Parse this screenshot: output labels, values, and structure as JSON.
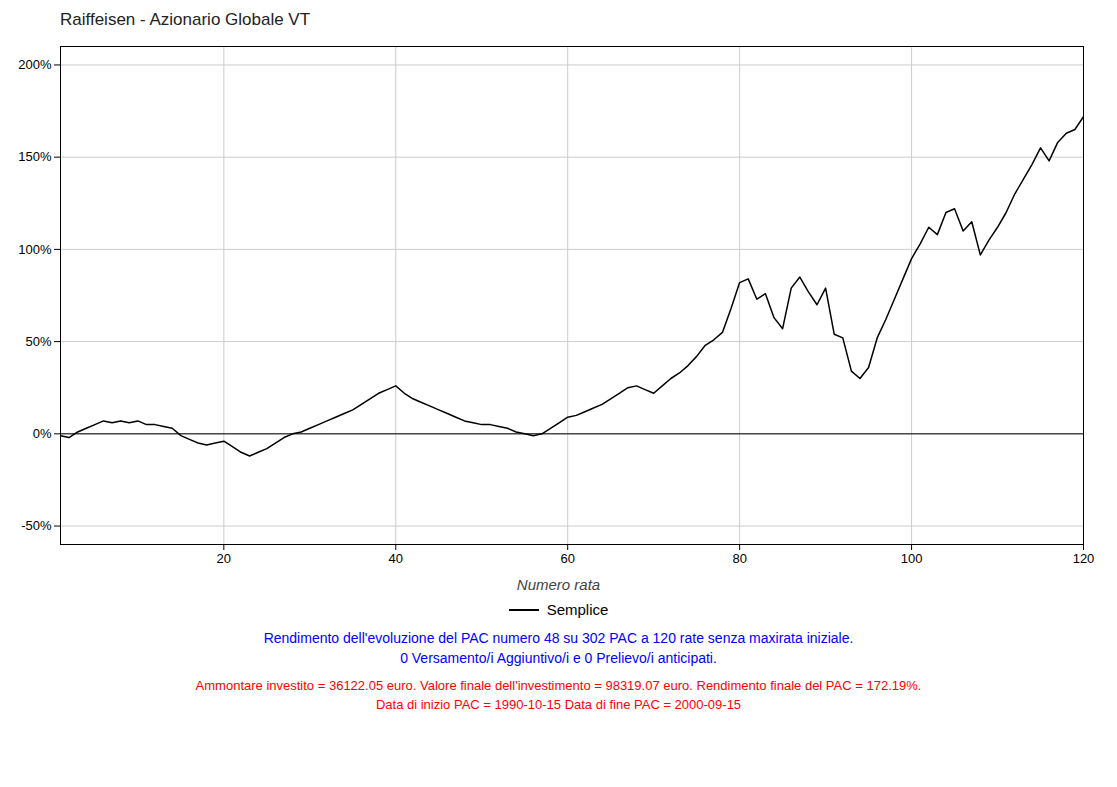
{
  "chart_data": {
    "type": "line",
    "title": "Raiffeisen - Azionario Globale VT",
    "xlabel": "Numero rata",
    "x": [
      1,
      2,
      3,
      4,
      5,
      6,
      7,
      8,
      9,
      10,
      11,
      12,
      13,
      14,
      15,
      16,
      17,
      18,
      19,
      20,
      21,
      22,
      23,
      24,
      25,
      26,
      27,
      28,
      29,
      30,
      31,
      32,
      33,
      34,
      35,
      36,
      37,
      38,
      39,
      40,
      41,
      42,
      43,
      44,
      45,
      46,
      47,
      48,
      49,
      50,
      51,
      52,
      53,
      54,
      55,
      56,
      57,
      58,
      59,
      60,
      61,
      62,
      63,
      64,
      65,
      66,
      67,
      68,
      69,
      70,
      71,
      72,
      73,
      74,
      75,
      76,
      77,
      78,
      79,
      80,
      81,
      82,
      83,
      84,
      85,
      86,
      87,
      88,
      89,
      90,
      91,
      92,
      93,
      94,
      95,
      96,
      97,
      98,
      99,
      100,
      101,
      102,
      103,
      104,
      105,
      106,
      107,
      108,
      109,
      110,
      111,
      112,
      113,
      114,
      115,
      116,
      117,
      118,
      119,
      120
    ],
    "series": [
      {
        "name": "Semplice",
        "color": "#000000",
        "values": [
          -0.01,
          -0.02,
          0.01,
          0.03,
          0.05,
          0.07,
          0.06,
          0.07,
          0.06,
          0.07,
          0.05,
          0.05,
          0.04,
          0.03,
          -0.01,
          -0.03,
          -0.05,
          -0.06,
          -0.05,
          -0.04,
          -0.07,
          -0.1,
          -0.12,
          -0.1,
          -0.08,
          -0.05,
          -0.02,
          0.0,
          0.01,
          0.03,
          0.05,
          0.07,
          0.09,
          0.11,
          0.13,
          0.16,
          0.19,
          0.22,
          0.24,
          0.26,
          0.22,
          0.19,
          0.17,
          0.15,
          0.13,
          0.11,
          0.09,
          0.07,
          0.06,
          0.05,
          0.05,
          0.04,
          0.03,
          0.01,
          0.0,
          -0.01,
          0.0,
          0.03,
          0.06,
          0.09,
          0.1,
          0.12,
          0.14,
          0.16,
          0.19,
          0.22,
          0.25,
          0.26,
          0.24,
          0.22,
          0.26,
          0.3,
          0.33,
          0.37,
          0.42,
          0.48,
          0.51,
          0.55,
          0.68,
          0.82,
          0.84,
          0.73,
          0.76,
          0.63,
          0.57,
          0.79,
          0.85,
          0.77,
          0.7,
          0.79,
          0.54,
          0.52,
          0.34,
          0.3,
          0.36,
          0.52,
          0.62,
          0.73,
          0.84,
          0.95,
          1.03,
          1.12,
          1.08,
          1.2,
          1.22,
          1.1,
          1.15,
          0.97,
          1.05,
          1.12,
          1.2,
          1.3,
          1.38,
          1.46,
          1.55,
          1.48,
          1.58,
          1.63,
          1.65,
          1.72
        ]
      }
    ],
    "xlim": [
      1,
      120
    ],
    "ylim": [
      -0.6,
      2.1
    ],
    "xticks": [
      20,
      40,
      60,
      80,
      100,
      120
    ],
    "yticks": [
      {
        "value": -0.5,
        "label": "-50%"
      },
      {
        "value": 0.0,
        "label": "0%"
      },
      {
        "value": 0.5,
        "label": "50%"
      },
      {
        "value": 1.0,
        "label": "100%"
      },
      {
        "value": 1.5,
        "label": "150%"
      },
      {
        "value": 2.0,
        "label": "200%"
      }
    ],
    "hlines": [
      0
    ],
    "grid": true,
    "legend": "bottom",
    "annotations": [
      {
        "text": "Rendimento dell'evoluzione del PAC numero 48 su 302 PAC a 120 rate senza maxirata iniziale.",
        "color": "blue"
      },
      {
        "text": "0 Versamento/i Aggiuntivo/i e 0 Prelievo/i anticipati.",
        "color": "blue"
      },
      {
        "text": "Ammontare investito = 36122.05 euro. Valore finale dell'investimento = 98319.07 euro. Rendimento finale del PAC = 172.19%.",
        "color": "red"
      },
      {
        "text": "Data di inizio PAC = 1990-10-15  Data di fine PAC = 2000-09-15",
        "color": "red"
      }
    ]
  }
}
